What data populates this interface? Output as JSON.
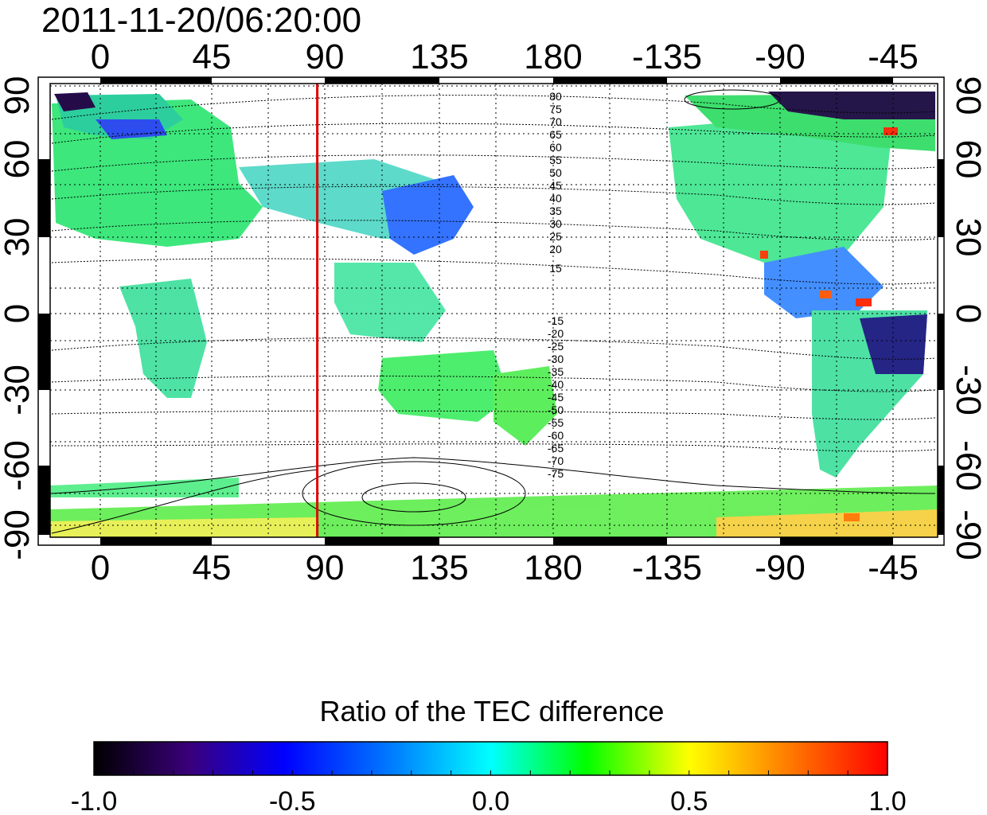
{
  "figure": {
    "timestamp": "2011-11-20/06:20:00",
    "top_lon_labels": [
      "0",
      "45",
      "90",
      "135",
      "180",
      "-135",
      "-90",
      "-45"
    ],
    "bottom_lon_labels": [
      "0",
      "45",
      "90",
      "135",
      "180",
      "-135",
      "-90",
      "-45"
    ],
    "left_lat_labels": [
      "90",
      "60",
      "30",
      "0",
      "-30",
      "-60",
      "-90"
    ],
    "right_lat_labels": [
      "90",
      "60",
      "30",
      "0",
      "-30",
      "-60",
      "-90"
    ],
    "contour_labels_north": [
      "80",
      "75",
      "70",
      "65",
      "60",
      "55",
      "50",
      "45",
      "40",
      "35",
      "30",
      "25",
      "20",
      "15"
    ],
    "contour_labels_south": [
      "-15",
      "-20",
      "-25",
      "-30",
      "-35",
      "-40",
      "-45",
      "-50",
      "-55",
      "-60",
      "-65",
      "-70",
      "-75"
    ],
    "red_meridian_lon": 87,
    "colorbar": {
      "title": "Ratio of the TEC difference",
      "range": [
        -1.0,
        1.0
      ],
      "ticks": [
        "-1.0",
        "-0.5",
        "0.0",
        "0.5",
        "1.0"
      ],
      "colors": [
        "#000000",
        "#3a007a",
        "#0000ff",
        "#00ffff",
        "#00ff00",
        "#ffff00",
        "#ff8000",
        "#ff0000"
      ]
    }
  }
}
